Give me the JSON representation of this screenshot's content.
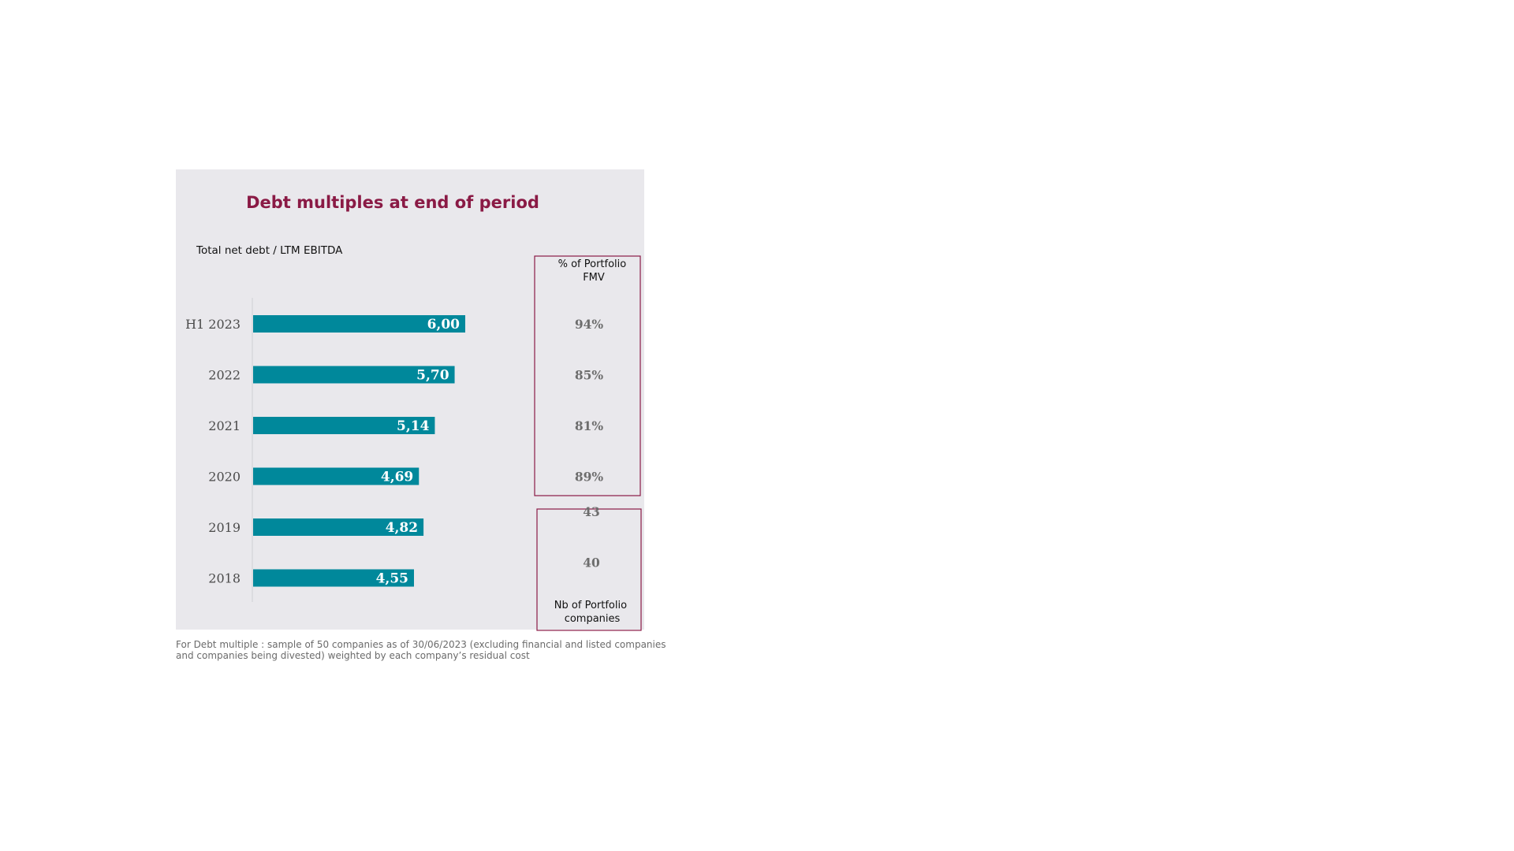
{
  "colors": {
    "title": "#8a1a45",
    "bar": "#00889b",
    "panel_background": "#e9e8ec",
    "box_border": "#8a1a45",
    "side_value_text": "#6d6d6d"
  },
  "chart_data": {
    "type": "bar",
    "orientation": "horizontal",
    "title": "Debt multiples at end of period",
    "ylabel": "Total net debt / LTM EBITDA",
    "categories": [
      "H1 2023",
      "2022",
      "2021",
      "2020",
      "2019",
      "2018"
    ],
    "values": [
      6.0,
      5.7,
      5.14,
      4.69,
      4.82,
      4.55
    ],
    "value_labels": [
      "6,00",
      "5,70",
      "5,14",
      "4,69",
      "4,82",
      "4,55"
    ],
    "xlim": [
      0,
      6.4
    ],
    "grid": false,
    "legend": "none",
    "pct_portfolio_fmv": {
      "header": [
        "% of Portfolio",
        "FMV"
      ],
      "categories": [
        "H1 2023",
        "2022",
        "2021",
        "2020"
      ],
      "values": [
        "94%",
        "85%",
        "81%",
        "89%"
      ]
    },
    "nb_portfolio_companies": {
      "header": [
        "Nb of Portfolio",
        "companies"
      ],
      "categories": [
        "2019",
        "2018"
      ],
      "values": [
        "43",
        "40"
      ]
    },
    "footnote": [
      "For Debt multiple : sample of 50 companies as of 30/06/2023 (excluding financial and listed companies",
      "and companies being divested) weighted by each company’s residual cost"
    ]
  }
}
